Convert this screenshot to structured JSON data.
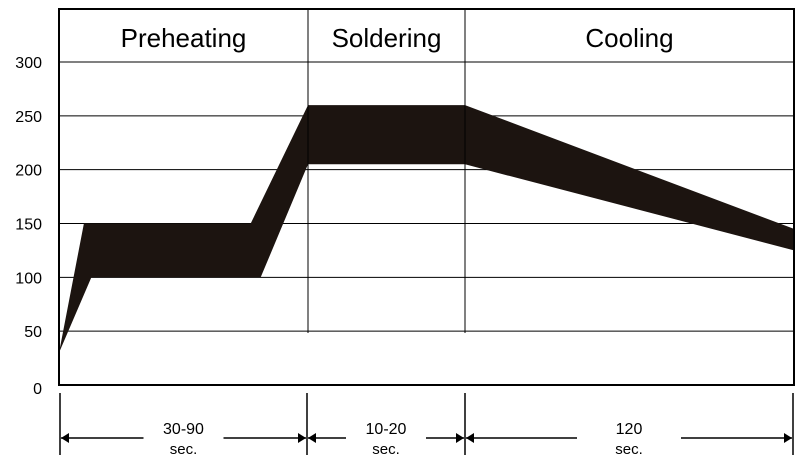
{
  "chart_data": {
    "type": "area",
    "title": "",
    "xlabel": "",
    "ylabel": "",
    "ylim": [
      0,
      300
    ],
    "yticks": [
      0,
      50,
      100,
      150,
      200,
      250,
      300
    ],
    "grid": true,
    "phases": [
      {
        "name": "Preheating",
        "duration_label": "30-90",
        "unit_label": "sec."
      },
      {
        "name": "Soldering",
        "duration_label": "10-20",
        "unit_label": "sec."
      },
      {
        "name": "Cooling",
        "duration_label": "120",
        "unit_label": "sec."
      }
    ],
    "band": {
      "upper": [
        {
          "phase_pos": 0.0,
          "value": 30
        },
        {
          "phase_pos": 0.1,
          "value": 150
        },
        {
          "phase_pos": 0.77,
          "value": 150
        },
        {
          "phase_pos": 1.0,
          "value": 260
        },
        {
          "phase_pos": 2.0,
          "value": 260
        },
        {
          "phase_pos": 3.0,
          "value": 145
        }
      ],
      "lower": [
        {
          "phase_pos": 3.0,
          "value": 125
        },
        {
          "phase_pos": 2.0,
          "value": 205
        },
        {
          "phase_pos": 1.0,
          "value": 205
        },
        {
          "phase_pos": 0.81,
          "value": 100
        },
        {
          "phase_pos": 0.13,
          "value": 100
        },
        {
          "phase_pos": 0.0,
          "value": 30
        }
      ]
    },
    "colors": {
      "band": "#1c1410",
      "grid": "#000000",
      "frame": "#000000"
    }
  }
}
